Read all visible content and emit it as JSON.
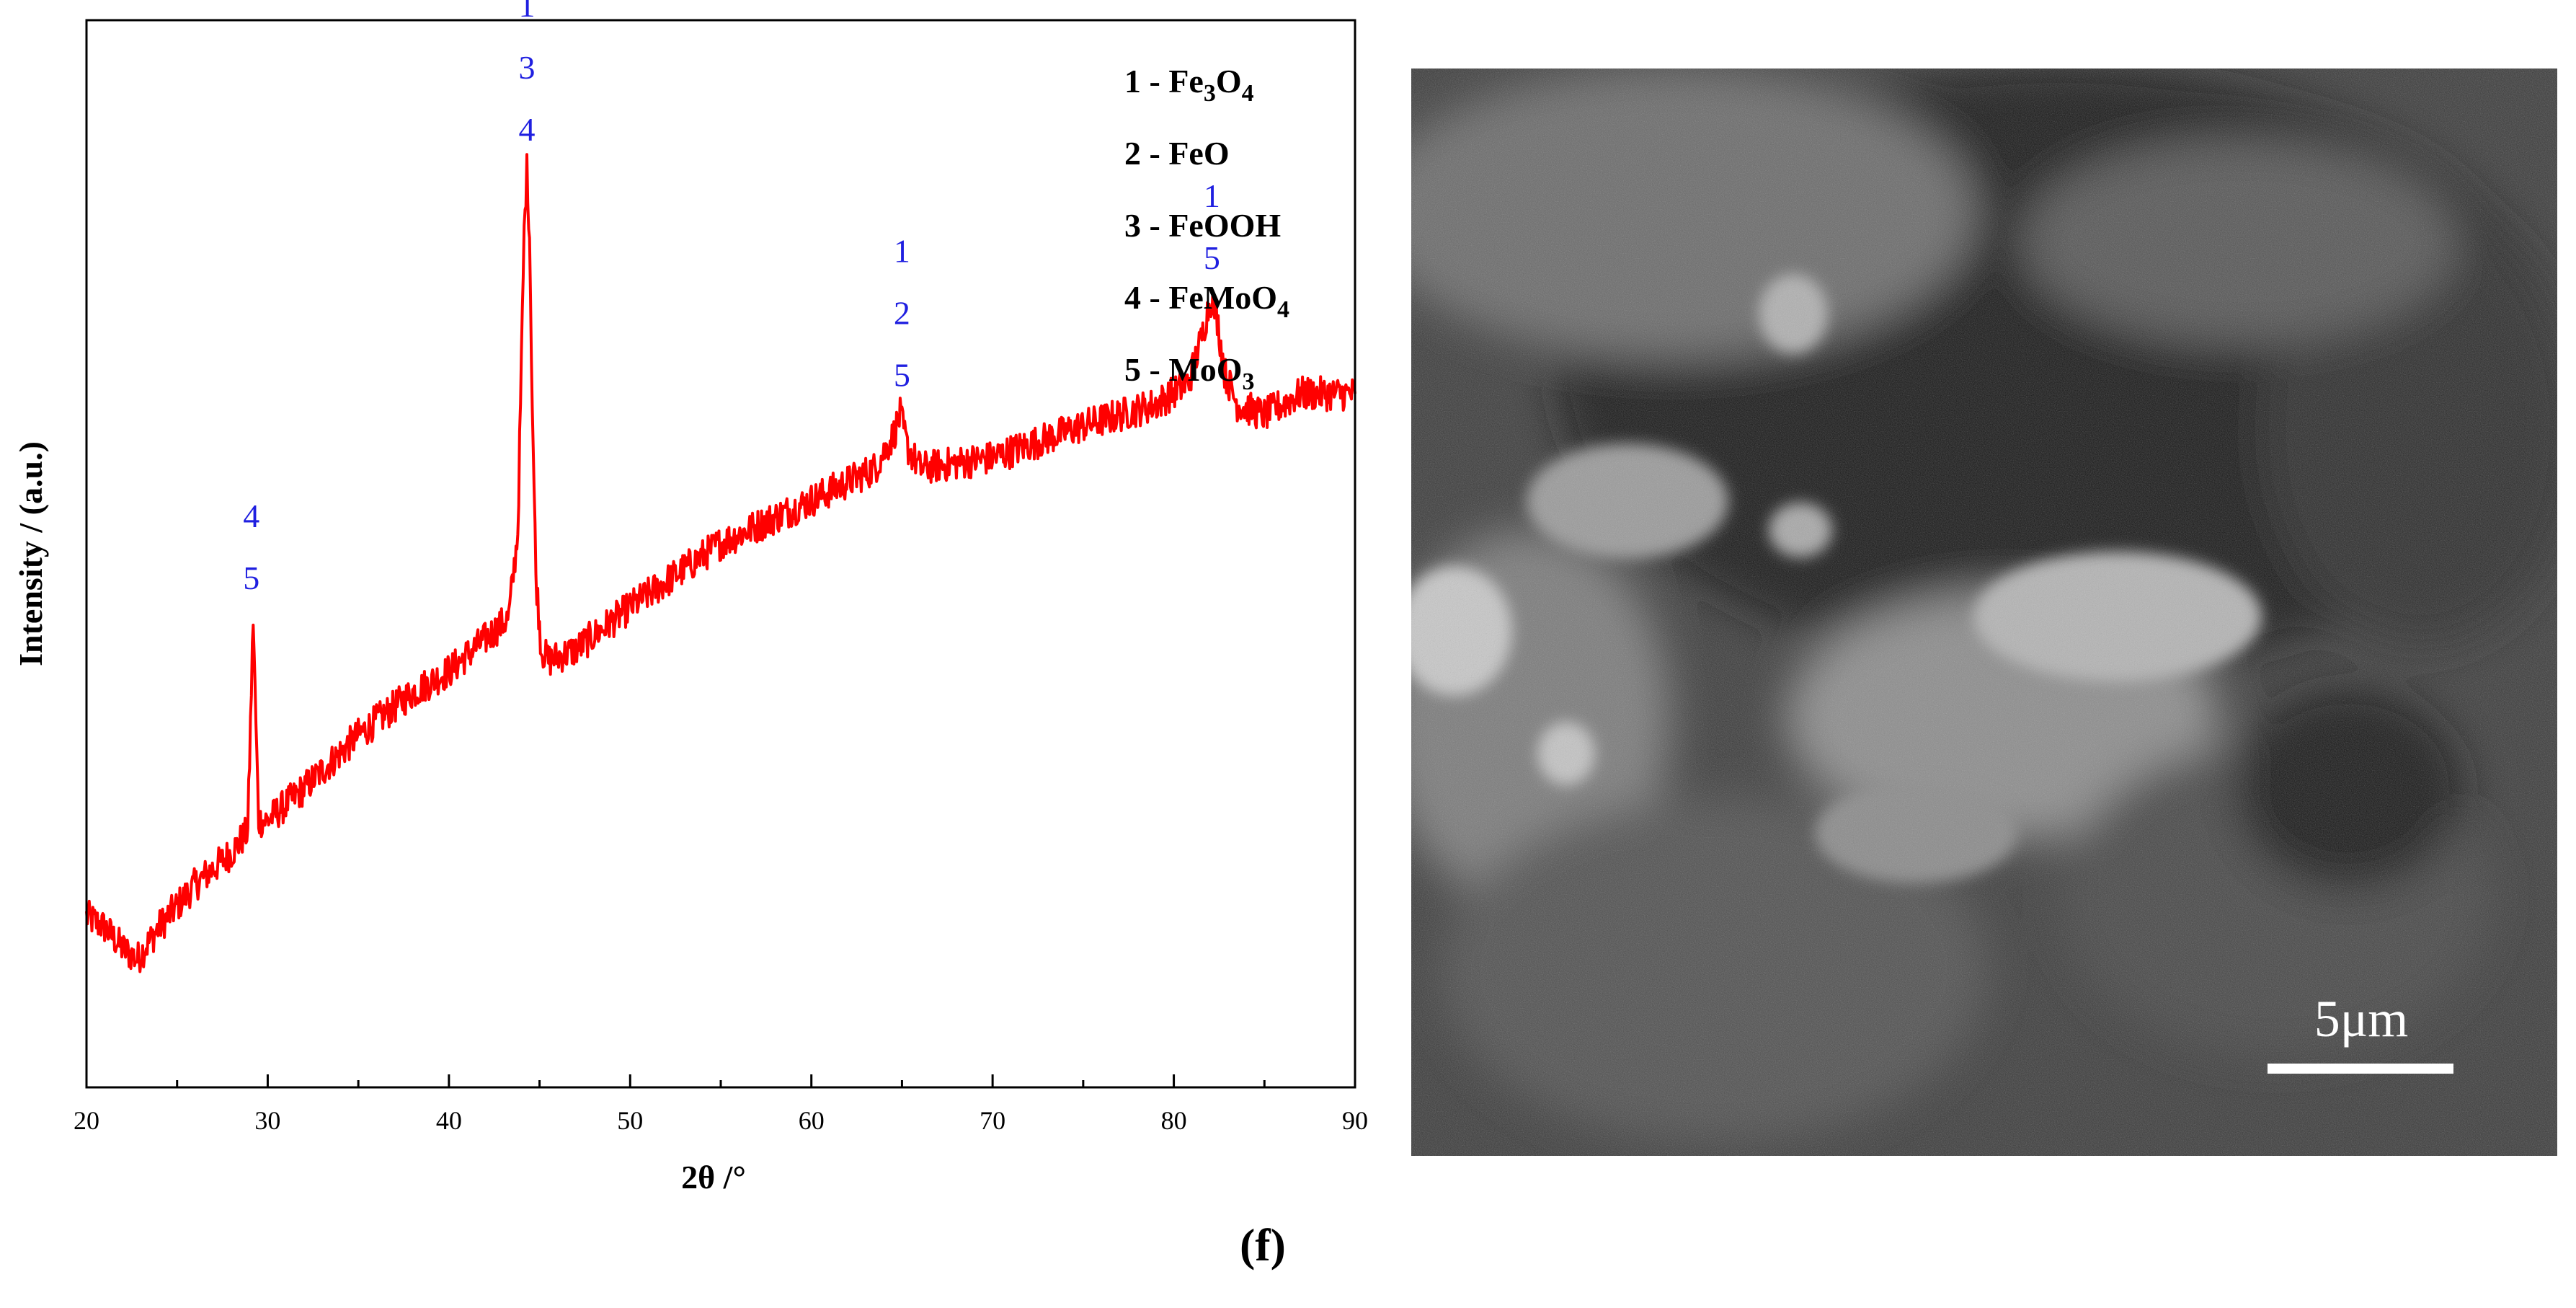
{
  "chart_data": {
    "type": "line",
    "title": "",
    "xlabel": "2θ /°",
    "ylabel": "Intensity / (a.u.)",
    "xlim": [
      20,
      90
    ],
    "ylim": [
      0,
      100
    ],
    "y_ticks_shown": false,
    "x_ticks": [
      20,
      30,
      40,
      50,
      60,
      70,
      80,
      90
    ],
    "series": [
      {
        "name": "XRD pattern",
        "color": "#ff0000",
        "x": [
          20,
          21,
          22,
          22.8,
          24,
          26,
          28,
          28.9,
          29.05,
          29.2,
          29.35,
          29.5,
          30,
          32,
          35,
          38,
          40,
          42,
          43.3,
          43.8,
          44.0,
          44.15,
          44.3,
          44.45,
          44.6,
          44.8,
          45.1,
          45.5,
          47,
          50,
          55,
          60,
          63.5,
          64.5,
          64.9,
          65.3,
          66,
          70,
          75,
          79,
          80.8,
          81.5,
          81.9,
          82.1,
          82.4,
          82.8,
          83.5,
          85,
          87,
          90
        ],
        "y": [
          16,
          15,
          13,
          12,
          15,
          19,
          22,
          24,
          34,
          44,
          34,
          25,
          25,
          28,
          33,
          37,
          39,
          42,
          44,
          52,
          68,
          80,
          86,
          80,
          64,
          48,
          41,
          40,
          41,
          45,
          51,
          55,
          58,
          61,
          63,
          60,
          58,
          59,
          62,
          64,
          66,
          70,
          73,
          74,
          72,
          67,
          64,
          63,
          65,
          65
        ]
      }
    ],
    "peak_labels": [
      {
        "x": 29.1,
        "labels": [
          "4",
          "5"
        ]
      },
      {
        "x": 44.3,
        "labels": [
          "1",
          "3",
          "4"
        ]
      },
      {
        "x": 65.0,
        "labels": [
          "1",
          "2",
          "5"
        ]
      },
      {
        "x": 82.1,
        "labels": [
          "1",
          "5"
        ]
      }
    ],
    "legend": {
      "placement": "top-right",
      "entries": [
        {
          "number": "1",
          "phase": "Fe",
          "sub1": "3",
          "mid": "O",
          "sub2": "4"
        },
        {
          "number": "2",
          "phase": "FeO",
          "sub1": "",
          "mid": "",
          "sub2": ""
        },
        {
          "number": "3",
          "phase": "FeOOH",
          "sub1": "",
          "mid": "",
          "sub2": ""
        },
        {
          "number": "4",
          "phase": "FeMoO",
          "sub1": "4",
          "mid": "",
          "sub2": ""
        },
        {
          "number": "5",
          "phase": "MoO",
          "sub1": "3",
          "mid": "",
          "sub2": ""
        }
      ]
    }
  },
  "sem_image": {
    "scale_bar_label": "5μm"
  },
  "panel_label": "(f)"
}
